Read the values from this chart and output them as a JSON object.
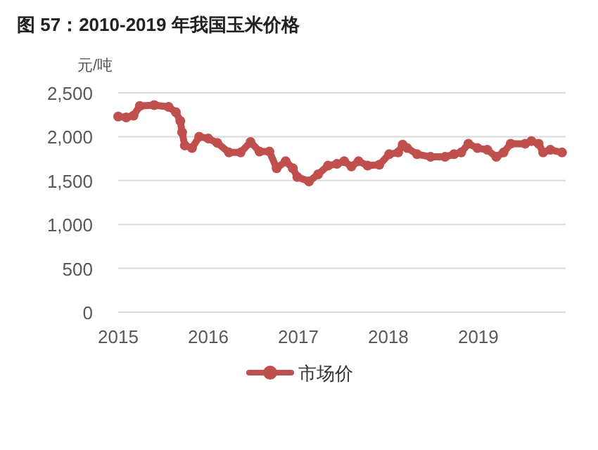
{
  "chart_data": {
    "type": "line",
    "title": "图 57：2010-2019 年我国玉米价格",
    "ylabel": "元/吨",
    "x": [
      2015.0,
      2015.09,
      2015.17,
      2015.24,
      2015.4,
      2015.56,
      2015.64,
      2015.69,
      2015.71,
      2015.74,
      2015.82,
      2015.9,
      2016.0,
      2016.1,
      2016.23,
      2016.36,
      2016.47,
      2016.57,
      2016.68,
      2016.76,
      2016.86,
      2016.94,
      2016.99,
      2017.12,
      2017.22,
      2017.33,
      2017.43,
      2017.51,
      2017.59,
      2017.67,
      2017.77,
      2017.9,
      2018.01,
      2018.11,
      2018.16,
      2018.21,
      2018.32,
      2018.47,
      2018.63,
      2018.73,
      2018.81,
      2018.89,
      2018.99,
      2019.1,
      2019.2,
      2019.28,
      2019.36,
      2019.52,
      2019.59,
      2019.67,
      2019.72,
      2019.8,
      2019.93
    ],
    "series": [
      {
        "name": "市场价",
        "color": "#c0504d",
        "values": [
          2230,
          2220,
          2240,
          2350,
          2360,
          2340,
          2280,
          2180,
          2050,
          1900,
          1870,
          2000,
          1980,
          1930,
          1820,
          1820,
          1940,
          1830,
          1830,
          1640,
          1720,
          1640,
          1540,
          1490,
          1570,
          1670,
          1690,
          1720,
          1660,
          1720,
          1670,
          1680,
          1800,
          1820,
          1910,
          1870,
          1800,
          1770,
          1770,
          1800,
          1820,
          1920,
          1870,
          1850,
          1770,
          1820,
          1920,
          1920,
          1950,
          1920,
          1820,
          1850,
          1820
        ]
      }
    ],
    "xlim": [
      2015,
      2019.97
    ],
    "xticks": [
      2015,
      2016,
      2017,
      2018,
      2019
    ],
    "ylim": [
      0,
      2500
    ],
    "yticks": [
      {
        "value": 0,
        "label": "0"
      },
      {
        "value": 500,
        "label": "500"
      },
      {
        "value": 1000,
        "label": "1,000"
      },
      {
        "value": 1500,
        "label": "1,500"
      },
      {
        "value": 2000,
        "label": "2,000"
      },
      {
        "value": 2500,
        "label": "2,500"
      }
    ],
    "grid": "y",
    "legend": "bottom",
    "marker": "circle",
    "line_style": "solid"
  }
}
